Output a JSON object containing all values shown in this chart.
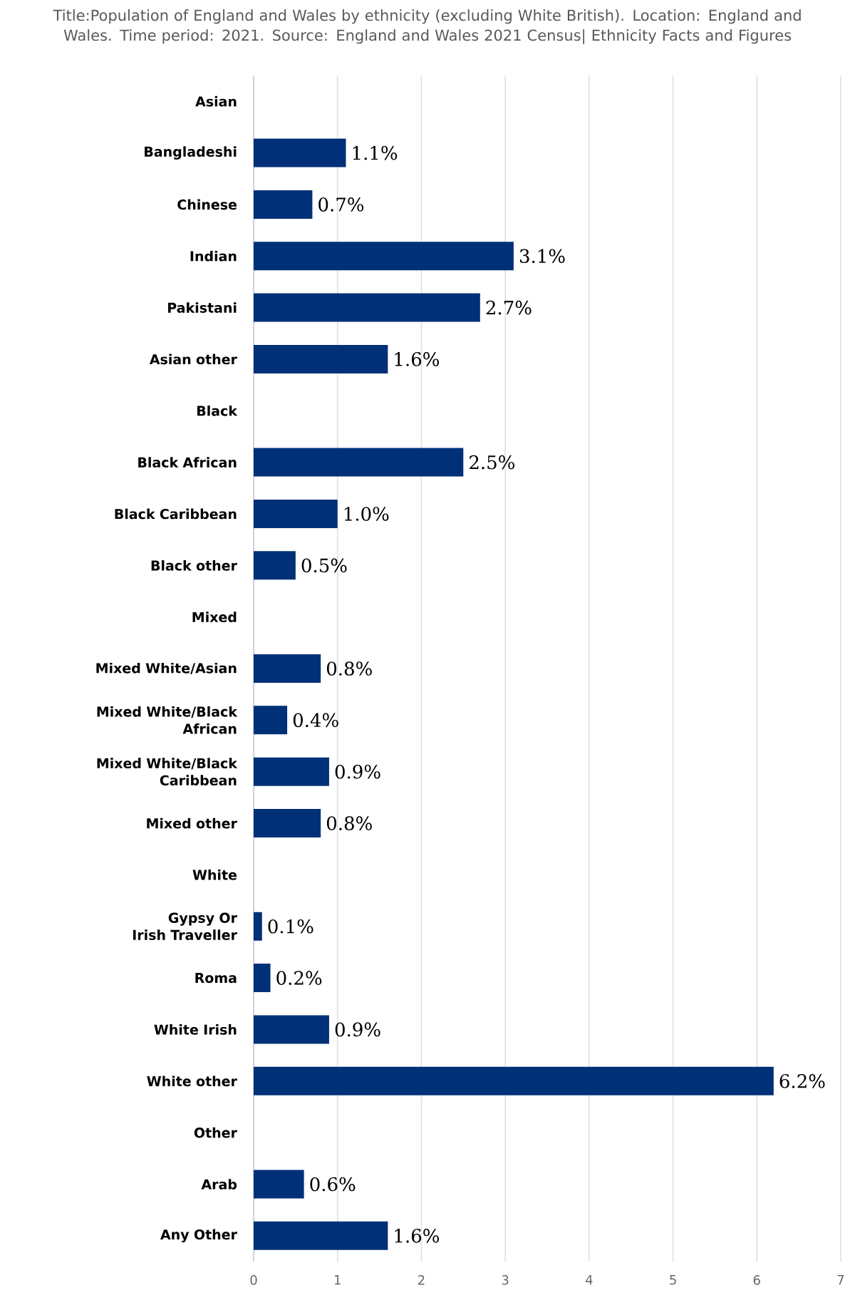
{
  "chart_data": {
    "type": "bar",
    "orientation": "horizontal",
    "title": "Title:Population of England and Wales by ethnicity (excluding White British). Location: England and Wales. Time period: 2021. Source: England and Wales 2021 Census| Ethnicity Facts and Figures",
    "categories": [
      "Asian",
      "Bangladeshi",
      "Chinese",
      "Indian",
      "Pakistani",
      "Asian other",
      "Black",
      "Black African",
      "Black Caribbean",
      "Black other",
      "Mixed",
      "Mixed White/Asian",
      "Mixed White/Black African",
      "Mixed White/Black Caribbean",
      "Mixed other",
      "White",
      "Gypsy Or Irish Traveller",
      "Roma",
      "White Irish",
      "White other",
      "Other",
      "Arab",
      "Any Other"
    ],
    "values": [
      null,
      1.1,
      0.7,
      3.1,
      2.7,
      1.6,
      null,
      2.5,
      1.0,
      0.5,
      null,
      0.8,
      0.4,
      0.9,
      0.8,
      null,
      0.1,
      0.2,
      0.9,
      6.2,
      null,
      0.6,
      1.6
    ],
    "value_labels": [
      null,
      "1.1%",
      "0.7%",
      "3.1%",
      "2.7%",
      "1.6%",
      null,
      "2.5%",
      "1.0%",
      "0.5%",
      null,
      "0.8%",
      "0.4%",
      "0.9%",
      "0.8%",
      null,
      "0.1%",
      "0.2%",
      "0.9%",
      "6.2%",
      null,
      "0.6%",
      "1.6%"
    ],
    "color": "#003078",
    "xlim": [
      0,
      7
    ],
    "xticks": [
      0,
      1,
      2,
      3,
      4,
      5,
      6,
      7
    ],
    "grid": "x"
  }
}
